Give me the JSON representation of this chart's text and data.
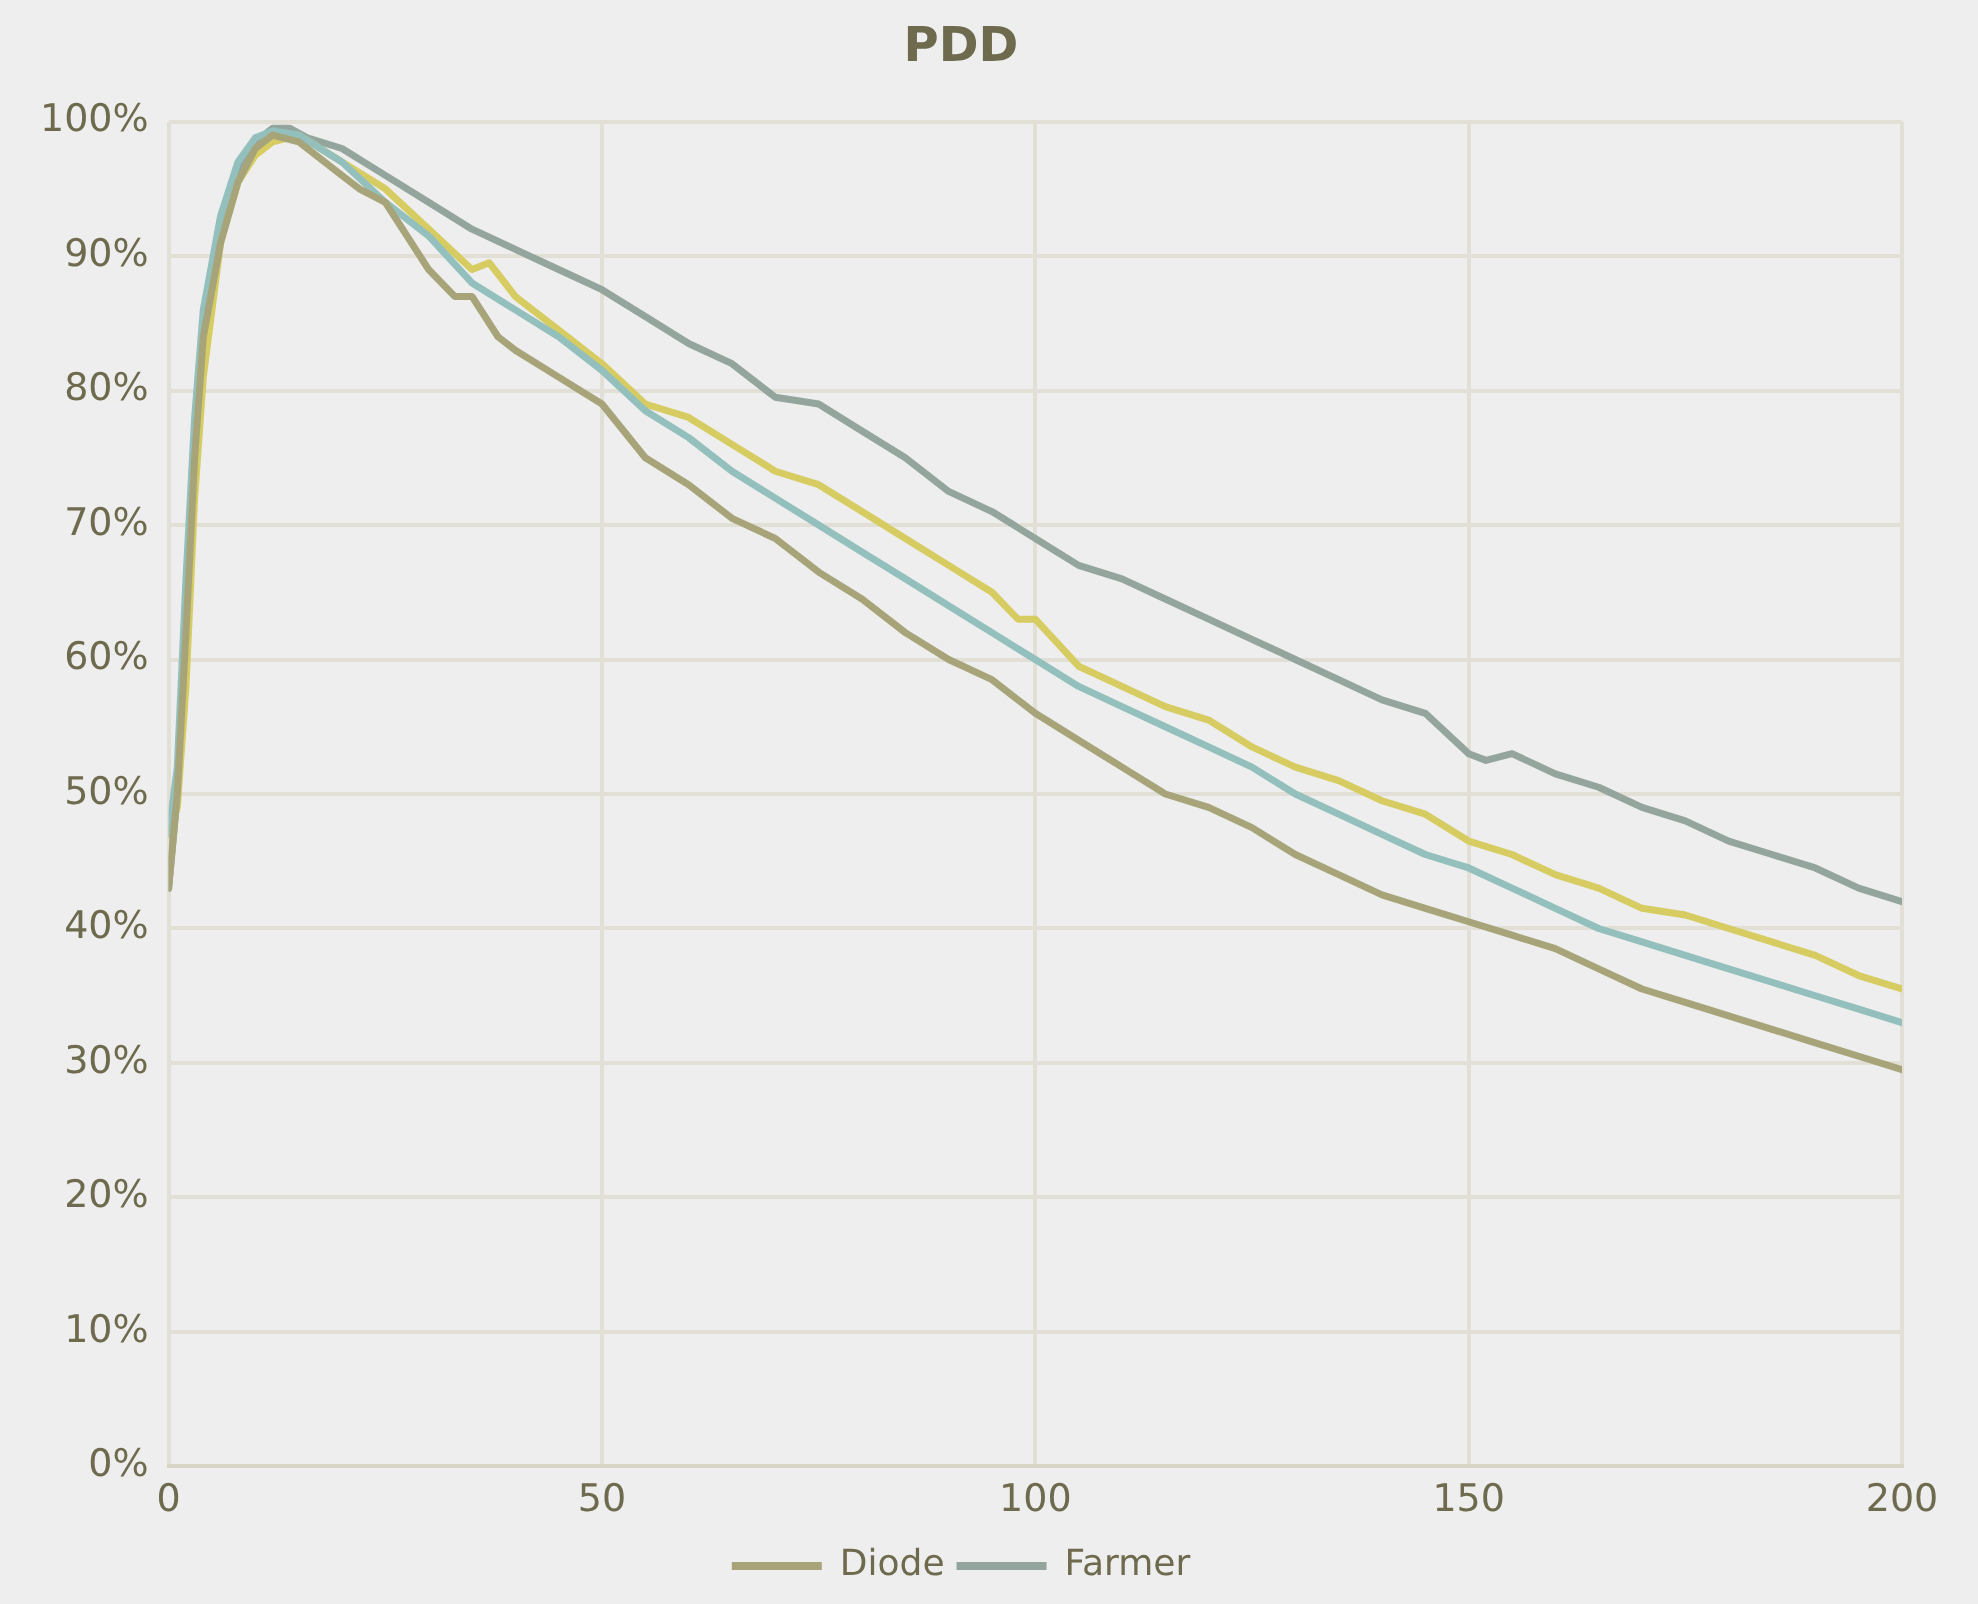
{
  "chart_data": {
    "type": "line",
    "title": "PDD",
    "legend": "bottom",
    "grid": true,
    "marker": "none",
    "line_style": "solid",
    "xlim": [
      0,
      200
    ],
    "xticks": [
      0,
      50,
      100,
      150,
      200
    ],
    "ylim": [
      0,
      100
    ],
    "yticks": [
      {
        "value": 0,
        "label": "0%"
      },
      {
        "value": 10,
        "label": "10%"
      },
      {
        "value": 20,
        "label": "20%"
      },
      {
        "value": 30,
        "label": "30%"
      },
      {
        "value": 40,
        "label": "40%"
      },
      {
        "value": 50,
        "label": "50%"
      },
      {
        "value": 60,
        "label": "60%"
      },
      {
        "value": 70,
        "label": "70%"
      },
      {
        "value": 80,
        "label": "80%"
      },
      {
        "value": 90,
        "label": "90%"
      },
      {
        "value": 100,
        "label": "100%"
      }
    ],
    "series": [
      {
        "name": "Diode",
        "color": "#a8a47a",
        "x": [
          0,
          1,
          2,
          3,
          4,
          6,
          8,
          10,
          12,
          15,
          20,
          22,
          25,
          28,
          30,
          33,
          35,
          38,
          40,
          45,
          50,
          55,
          60,
          65,
          70,
          75,
          80,
          85,
          90,
          95,
          100,
          105,
          110,
          115,
          120,
          125,
          130,
          135,
          140,
          145,
          150,
          155,
          160,
          165,
          170,
          175,
          180,
          185,
          190,
          195,
          200
        ],
        "values": [
          43,
          50,
          62,
          75,
          84,
          91,
          95.5,
          98,
          99,
          98.5,
          96,
          95,
          94,
          91,
          89,
          87,
          87,
          84,
          83,
          81,
          79,
          75,
          73,
          70.5,
          69,
          66.5,
          64.5,
          62,
          60,
          58.5,
          56,
          54,
          52,
          50,
          49,
          47.5,
          45.5,
          44,
          42.5,
          41.5,
          40.5,
          39.5,
          38.5,
          37,
          35.5,
          34.5,
          33.5,
          32.5,
          31.5,
          30.5,
          29.5
        ]
      },
      {
        "color": "#93bfbd",
        "x": [
          0,
          1,
          2,
          3,
          4,
          6,
          8,
          10,
          12,
          15,
          20,
          25,
          30,
          35,
          40,
          45,
          50,
          55,
          60,
          65,
          70,
          75,
          80,
          85,
          90,
          95,
          100,
          105,
          110,
          115,
          120,
          125,
          130,
          135,
          140,
          145,
          150,
          155,
          160,
          165,
          170,
          175,
          180,
          185,
          190,
          195,
          200
        ],
        "values": [
          47,
          52,
          66,
          78,
          86,
          93,
          97,
          98.8,
          99.3,
          99,
          97,
          94,
          91.5,
          88,
          86,
          84,
          81.5,
          78.5,
          76.5,
          74,
          72,
          70,
          68,
          66,
          64,
          62,
          60,
          58,
          56.5,
          55,
          53.5,
          52,
          50,
          48.5,
          47,
          45.5,
          44.5,
          43,
          41.5,
          40,
          39,
          38,
          37,
          36,
          35,
          34,
          33
        ]
      },
      {
        "color": "#d6cc62",
        "x": [
          0,
          1,
          2,
          3,
          4,
          6,
          8,
          10,
          12,
          15,
          20,
          25,
          30,
          35,
          37,
          40,
          45,
          50,
          55,
          60,
          65,
          70,
          75,
          80,
          85,
          90,
          95,
          98,
          100,
          105,
          110,
          115,
          120,
          125,
          130,
          135,
          140,
          145,
          150,
          155,
          160,
          165,
          170,
          175,
          180,
          185,
          190,
          195,
          200
        ],
        "values": [
          47,
          49,
          58,
          72,
          81,
          91,
          95.5,
          97.5,
          98.5,
          99,
          97,
          95,
          92,
          89,
          89.5,
          87,
          84.5,
          82,
          79,
          78,
          76,
          74,
          73,
          71,
          69,
          67,
          65,
          63,
          63,
          59.5,
          58,
          56.5,
          55.5,
          53.5,
          52,
          51,
          49.5,
          48.5,
          46.5,
          45.5,
          44,
          43,
          41.5,
          41,
          40,
          39,
          38,
          36.5,
          35.5
        ]
      },
      {
        "name": "Farmer",
        "color": "#93a59c",
        "x": [
          0,
          1,
          2,
          3,
          4,
          6,
          8,
          10,
          12,
          14,
          16,
          20,
          25,
          30,
          35,
          40,
          45,
          50,
          55,
          60,
          65,
          70,
          75,
          80,
          85,
          90,
          95,
          100,
          105,
          110,
          115,
          120,
          125,
          130,
          135,
          140,
          145,
          150,
          152,
          155,
          160,
          165,
          170,
          175,
          180,
          185,
          190,
          195,
          200
        ],
        "values": [
          43,
          50,
          65,
          77,
          85,
          92.5,
          96.5,
          98.5,
          99.5,
          99.5,
          98.8,
          98,
          96,
          94,
          92,
          90.5,
          89,
          87.5,
          85.5,
          83.5,
          82,
          79.5,
          79,
          77,
          75,
          72.5,
          71,
          69,
          67,
          66,
          64.5,
          63,
          61.5,
          60,
          58.5,
          57,
          56,
          53,
          52.5,
          53,
          51.5,
          50.5,
          49,
          48,
          46.5,
          45.5,
          44.5,
          43,
          42
        ]
      }
    ]
  }
}
